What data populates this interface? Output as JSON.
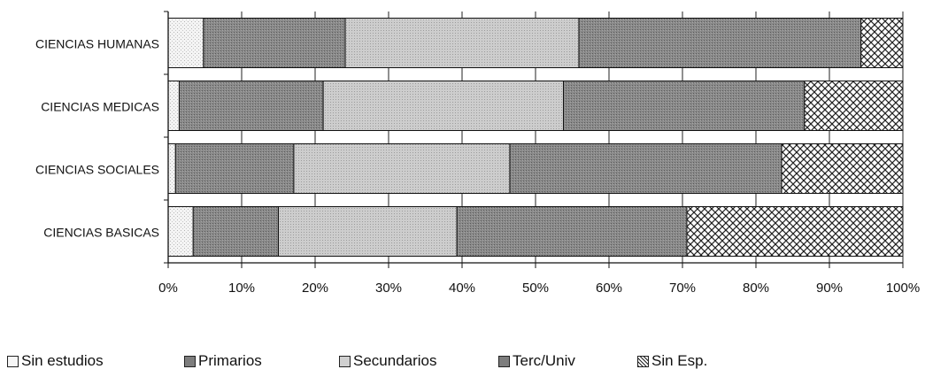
{
  "chart_data": {
    "type": "bar",
    "orientation": "horizontal",
    "stacked": "percent",
    "title": "",
    "xlabel": "",
    "ylabel": "",
    "xlim": [
      0,
      100
    ],
    "categories": [
      "CIENCIAS HUMANAS",
      "CIENCIAS MEDICAS",
      "CIENCIAS SOCIALES",
      "CIENCIAS BASICAS"
    ],
    "series": [
      {
        "name": "Sin estudios",
        "values": [
          4.8,
          1.5,
          1.0,
          3.4
        ],
        "color": "#f2f2f2",
        "pattern": "light-dots"
      },
      {
        "name": "Primarios",
        "values": [
          19.3,
          19.6,
          16.1,
          11.6
        ],
        "color": "#8c8c8c",
        "pattern": "dense-dots"
      },
      {
        "name": "Secundarios",
        "values": [
          31.8,
          32.7,
          29.4,
          24.3
        ],
        "color": "#c9c9c9",
        "pattern": "dots"
      },
      {
        "name": "Terc/Univ",
        "values": [
          38.4,
          32.8,
          37.0,
          31.3
        ],
        "color": "#808080",
        "pattern": "dense-dots"
      },
      {
        "name": "Sin Esp.",
        "values": [
          5.7,
          13.4,
          16.5,
          29.4
        ],
        "color": "#ffffff",
        "pattern": "checker"
      }
    ],
    "xticks": [
      "0%",
      "10%",
      "20%",
      "30%",
      "40%",
      "50%",
      "60%",
      "70%",
      "80%",
      "90%",
      "100%"
    ],
    "grid": true,
    "legend_position": "bottom"
  }
}
